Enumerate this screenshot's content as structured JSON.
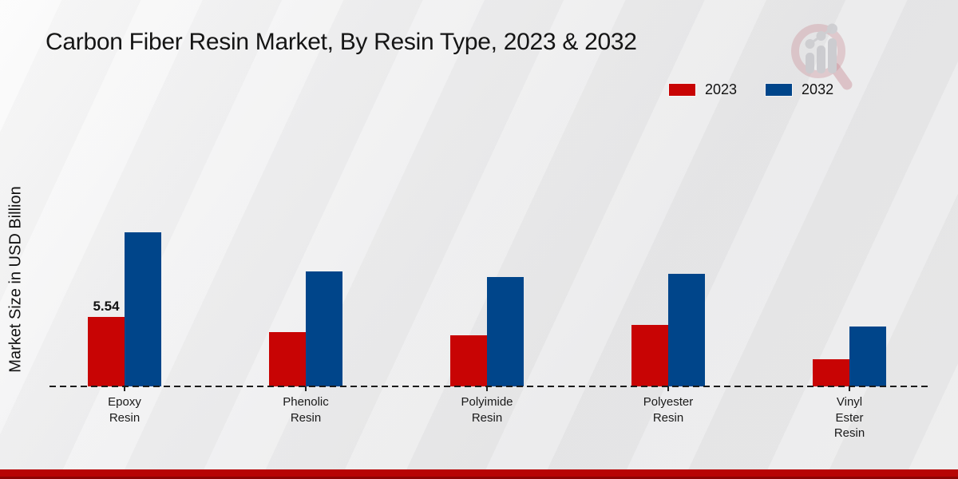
{
  "title": "Carbon Fiber Resin Market, By Resin Type, 2023 & 2032",
  "ylabel": "Market Size in USD Billion",
  "legend": [
    {
      "label": "2023",
      "color": "#c80404"
    },
    {
      "label": "2032",
      "color": "#00458a"
    }
  ],
  "watermark_icon": "magnifier-bar-chart-logo",
  "colors": {
    "series_2023": "#c80404",
    "series_2032": "#00458a",
    "footer_stripe": "#b30505",
    "baseline": "#1b1b1b"
  },
  "chart_data": {
    "type": "bar",
    "categories": [
      "Epoxy Resin",
      "Phenolic Resin",
      "Polyimide Resin",
      "Polyester Resin",
      "Vinyl Ester Resin"
    ],
    "category_label_lines": [
      [
        "Epoxy",
        "Resin"
      ],
      [
        "Phenolic",
        "Resin"
      ],
      [
        "Polyimide",
        "Resin"
      ],
      [
        "Polyester",
        "Resin"
      ],
      [
        "Vinyl",
        "Ester",
        "Resin"
      ]
    ],
    "series": [
      {
        "name": "2023",
        "color": "#c80404",
        "values": [
          5.54,
          4.3,
          4.1,
          4.9,
          2.15
        ]
      },
      {
        "name": "2032",
        "color": "#00458a",
        "values": [
          12.3,
          9.15,
          8.7,
          9.0,
          4.75
        ]
      }
    ],
    "annotations": [
      {
        "series": "2023",
        "category": "Epoxy Resin",
        "text": "5.54"
      }
    ],
    "title": "Carbon Fiber Resin Market, By Resin Type, 2023 & 2032",
    "xlabel": "",
    "ylabel": "Market Size in USD Billion",
    "ylim": [
      0,
      14
    ],
    "grid": false,
    "legend_position": "top-right",
    "baseline_style": "dashed"
  }
}
